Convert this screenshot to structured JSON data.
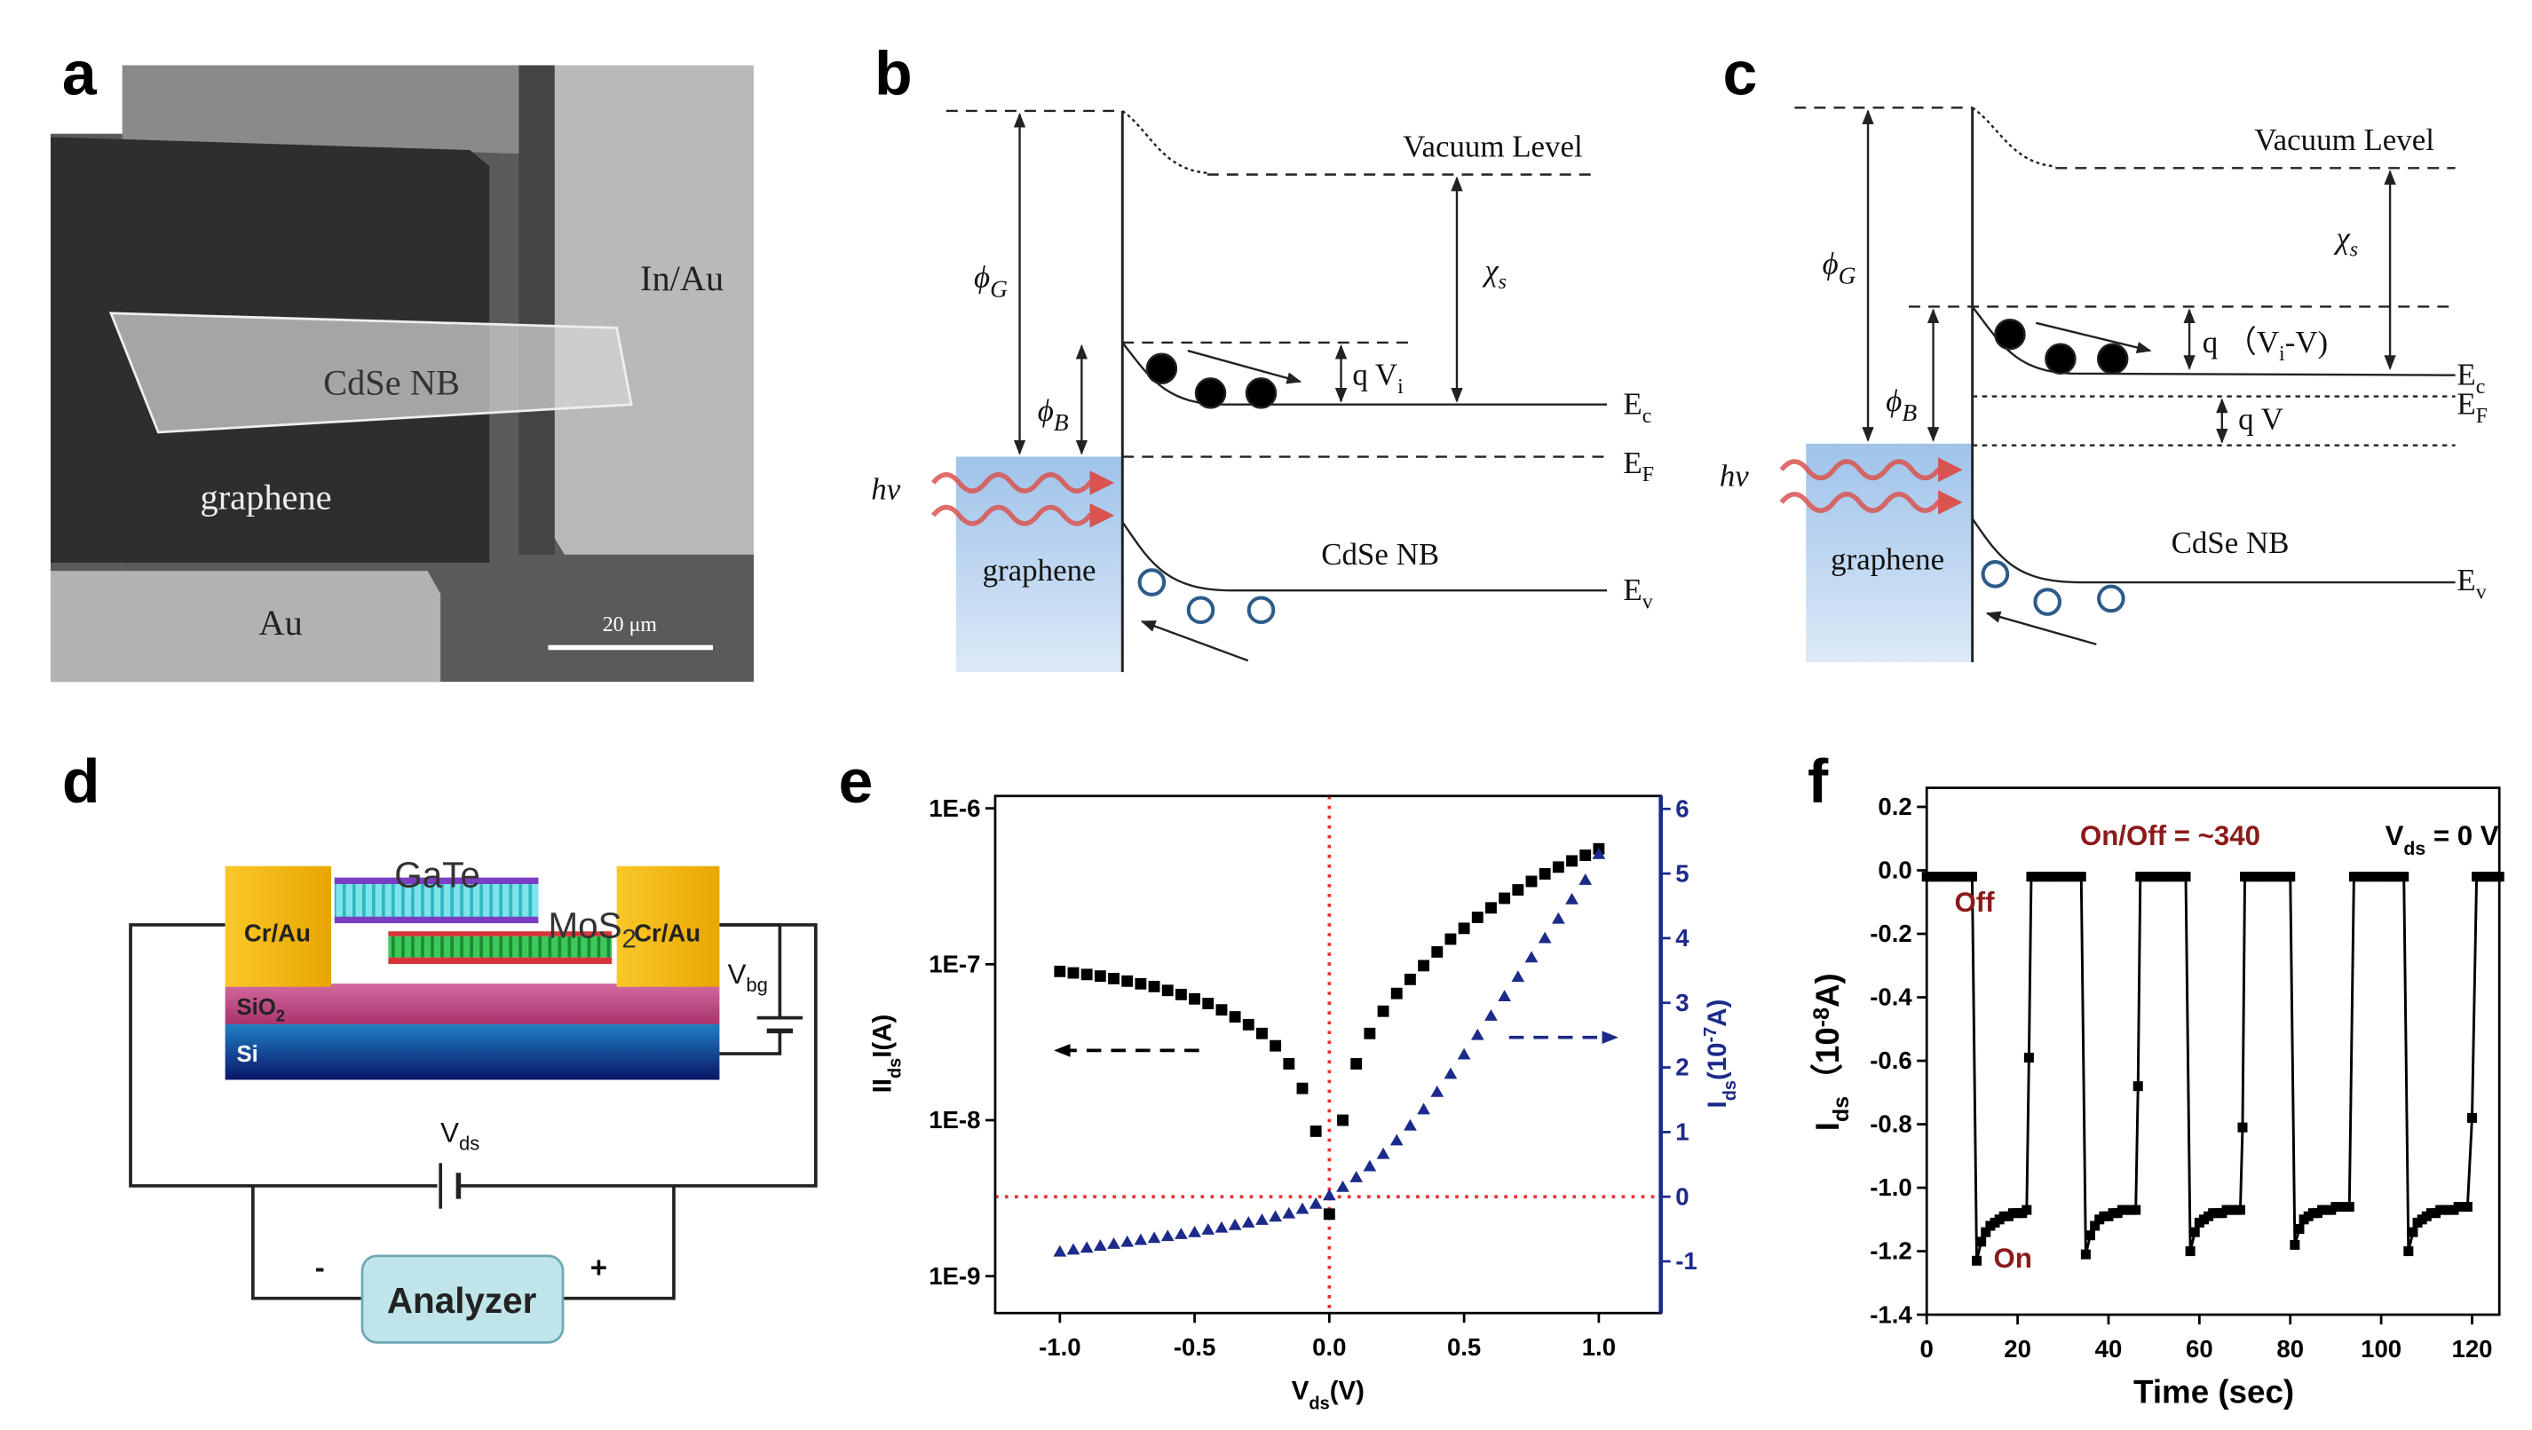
{
  "panel_labels": [
    "a",
    "b",
    "c",
    "d",
    "e",
    "f"
  ],
  "panel_a": {
    "labels": [
      "In/Au",
      "CdSe NB",
      "graphene",
      "Au"
    ],
    "scale_bar": "20 μm"
  },
  "panel_b": {
    "vacuum_level": "Vacuum Level",
    "chi": [
      "χ",
      "s"
    ],
    "phi_g": [
      "ϕ",
      "G"
    ],
    "phi_b": [
      "ϕ",
      "B"
    ],
    "qv": [
      "q V",
      "i"
    ],
    "ec": [
      "E",
      "c"
    ],
    "ef": [
      "E",
      "F"
    ],
    "ev": [
      "E",
      "v"
    ],
    "material": "CdSe NB",
    "graphene": "graphene",
    "photon": "hν"
  },
  "panel_c": {
    "vacuum_level": "Vacuum Level",
    "chi": [
      "χ",
      "s"
    ],
    "phi_g": [
      "ϕ",
      "G"
    ],
    "phi_b": [
      "ϕ",
      "B"
    ],
    "qvi": [
      "q （V",
      "i",
      "-V)"
    ],
    "qv": "q V",
    "ec": [
      "E",
      "c"
    ],
    "ef": [
      "E",
      "F"
    ],
    "ev": [
      "E",
      "v"
    ],
    "material": "CdSe NB",
    "graphene": "graphene",
    "photon": "hν"
  },
  "panel_d": {
    "gate": "GaTe",
    "mos": [
      "MoS",
      "2"
    ],
    "contact_left": "Cr/Au",
    "contact_right": "Cr/Au",
    "oxide": [
      "SiO",
      "2"
    ],
    "substrate": "Si",
    "vbg": [
      "V",
      "bg"
    ],
    "vds": [
      "V",
      "ds"
    ],
    "minus": "-",
    "plus": "+",
    "analyzer": "Analyzer"
  },
  "chart_data": [
    {
      "type": "scatter",
      "ylog": true,
      "xlabel": [
        "V",
        "ds",
        "(V)"
      ],
      "ylabel": [
        "II",
        "ds",
        "I(A)"
      ],
      "y2label": [
        "I",
        "ds",
        "(10",
        "-7",
        "A)"
      ],
      "x": [
        -1.0,
        -0.95,
        -0.9,
        -0.85,
        -0.8,
        -0.75,
        -0.7,
        -0.65,
        -0.6,
        -0.55,
        -0.5,
        -0.45,
        -0.4,
        -0.35,
        -0.3,
        -0.25,
        -0.2,
        -0.15,
        -0.1,
        -0.05,
        0.0,
        0.05,
        0.1,
        0.15,
        0.2,
        0.25,
        0.3,
        0.35,
        0.4,
        0.45,
        0.5,
        0.55,
        0.6,
        0.65,
        0.7,
        0.75,
        0.8,
        0.85,
        0.9,
        0.95,
        1.0
      ],
      "series": [
        {
          "color": "#000000",
          "marker": "square",
          "axis": "y",
          "values": [
            9e-08,
            8.8e-08,
            8.6e-08,
            8.4e-08,
            8.1e-08,
            7.8e-08,
            7.5e-08,
            7.2e-08,
            6.8e-08,
            6.4e-08,
            6e-08,
            5.6e-08,
            5.1e-08,
            4.6e-08,
            4.1e-08,
            3.6e-08,
            3e-08,
            2.3e-08,
            1.6e-08,
            8.5e-09,
            2.5e-09,
            1e-08,
            2.3e-08,
            3.6e-08,
            5e-08,
            6.5e-08,
            8e-08,
            9.8e-08,
            1.2e-07,
            1.45e-07,
            1.7e-07,
            2e-07,
            2.3e-07,
            2.65e-07,
            3e-07,
            3.4e-07,
            3.8e-07,
            4.2e-07,
            4.6e-07,
            5e-07,
            5.5e-07
          ]
        },
        {
          "color": "#1c2a8a",
          "marker": "triangle",
          "axis": "y2",
          "values": [
            -0.85,
            -0.82,
            -0.79,
            -0.76,
            -0.73,
            -0.7,
            -0.67,
            -0.64,
            -0.61,
            -0.58,
            -0.55,
            -0.51,
            -0.48,
            -0.44,
            -0.4,
            -0.36,
            -0.31,
            -0.26,
            -0.19,
            -0.11,
            0.02,
            0.15,
            0.3,
            0.47,
            0.66,
            0.87,
            1.1,
            1.35,
            1.62,
            1.9,
            2.2,
            2.5,
            2.8,
            3.1,
            3.4,
            3.7,
            4.0,
            4.3,
            4.6,
            4.9,
            5.3
          ]
        }
      ],
      "xlim": [
        -1.24,
        1.23
      ],
      "ylim": [
        5.8e-10,
        1.2e-06
      ],
      "y2lim": [
        -1.8,
        6.2
      ],
      "xticks": [
        {
          "value": -1,
          "label": "-1.0"
        },
        -0.5,
        {
          "value": 0,
          "label": "0.0"
        },
        0.5,
        {
          "value": 1,
          "label": "1.0"
        }
      ],
      "yticks": [
        {
          "value": 1e-09,
          "label": "1E-9"
        },
        {
          "value": 1e-08,
          "label": "1E-8"
        },
        {
          "value": 1e-07,
          "label": "1E-7"
        },
        {
          "value": 1e-06,
          "label": "1E-6"
        }
      ],
      "y2ticks": [
        -1,
        0,
        1,
        2,
        3,
        4,
        5,
        6
      ],
      "y2_color": "#1c2a8a",
      "reference_lines": [
        {
          "axis": "x",
          "value": 0,
          "color": "#e83030"
        },
        {
          "axis": "y2",
          "value": 0,
          "color": "#e83030"
        }
      ]
    },
    {
      "type": "line",
      "xlabel": "Time (sec)",
      "ylabel": [
        "I",
        "ds",
        "（10",
        "-8",
        "A)"
      ],
      "x": [
        0,
        1,
        2,
        3,
        4,
        5,
        6,
        7,
        8,
        9,
        10,
        11,
        12,
        13,
        14,
        15,
        16,
        17,
        18,
        19,
        20,
        21,
        22,
        22.5,
        23,
        24,
        25,
        26,
        27,
        28,
        29,
        30,
        31,
        32,
        33,
        34,
        35,
        36,
        37,
        38,
        39,
        40,
        41,
        42,
        43,
        44,
        45,
        46,
        46.5,
        47,
        48,
        49,
        50,
        51,
        52,
        53,
        54,
        55,
        56,
        57,
        58,
        59,
        60,
        61,
        62,
        63,
        64,
        65,
        66,
        67,
        68,
        69,
        69.5,
        70,
        71,
        72,
        73,
        74,
        75,
        76,
        77,
        78,
        79,
        80,
        81,
        82,
        83,
        84,
        85,
        86,
        87,
        88,
        89,
        90,
        91,
        92,
        93,
        94,
        95,
        96,
        97,
        98,
        99,
        100,
        101,
        102,
        103,
        104,
        105,
        106,
        107,
        108,
        109,
        110,
        111,
        112,
        113,
        114,
        115,
        116,
        117,
        118,
        119,
        120,
        121,
        122,
        123,
        124,
        125,
        126
      ],
      "series": [
        {
          "color": "#000000",
          "marker": "square",
          "values": [
            -0.02,
            -0.02,
            -0.02,
            -0.02,
            -0.02,
            -0.02,
            -0.02,
            -0.02,
            -0.02,
            -0.02,
            -0.02,
            -1.23,
            -1.17,
            -1.14,
            -1.12,
            -1.11,
            -1.1,
            -1.09,
            -1.09,
            -1.08,
            -1.08,
            -1.08,
            -1.07,
            -0.59,
            -0.02,
            -0.02,
            -0.02,
            -0.02,
            -0.02,
            -0.02,
            -0.02,
            -0.02,
            -0.02,
            -0.02,
            -0.02,
            -0.02,
            -1.21,
            -1.15,
            -1.12,
            -1.1,
            -1.09,
            -1.09,
            -1.08,
            -1.08,
            -1.07,
            -1.07,
            -1.07,
            -1.07,
            -0.68,
            -0.02,
            -0.02,
            -0.02,
            -0.02,
            -0.02,
            -0.02,
            -0.02,
            -0.02,
            -0.02,
            -0.02,
            -0.02,
            -1.2,
            -1.14,
            -1.11,
            -1.1,
            -1.09,
            -1.08,
            -1.08,
            -1.08,
            -1.07,
            -1.07,
            -1.07,
            -1.07,
            -0.81,
            -0.02,
            -0.02,
            -0.02,
            -0.02,
            -0.02,
            -0.02,
            -0.02,
            -0.02,
            -0.02,
            -0.02,
            -0.02,
            -1.18,
            -1.13,
            -1.1,
            -1.09,
            -1.08,
            -1.08,
            -1.07,
            -1.07,
            -1.07,
            -1.06,
            -1.06,
            -1.06,
            -1.06,
            -0.02,
            -0.02,
            -0.02,
            -0.02,
            -0.02,
            -0.02,
            -0.02,
            -0.02,
            -0.02,
            -0.02,
            -0.02,
            -0.02,
            -1.2,
            -1.14,
            -1.11,
            -1.1,
            -1.09,
            -1.08,
            -1.08,
            -1.07,
            -1.07,
            -1.07,
            -1.07,
            -1.06,
            -1.06,
            -1.06,
            -0.78,
            -0.02,
            -0.02,
            -0.02,
            -0.02,
            -0.02,
            -0.02
          ]
        }
      ],
      "xlim": [
        0,
        126
      ],
      "ylim": [
        -1.4,
        0.26
      ],
      "xticks": [
        0,
        20,
        40,
        60,
        80,
        100,
        120
      ],
      "yticks": [
        0.2,
        {
          "value": 0,
          "label": "0.0"
        },
        -0.2,
        -0.4,
        -0.6,
        -0.8,
        {
          "value": -1,
          "label": "-1.0"
        },
        -1.2,
        -1.4
      ],
      "annotations": [
        {
          "text": "On/Off = ~340",
          "color": "#8b1a1a"
        },
        {
          "text": [
            "V",
            "ds",
            " = 0 V"
          ],
          "color": "#000000"
        },
        {
          "text": "Off",
          "color": "#8b1a1a"
        },
        {
          "text": "On",
          "color": "#8b1a1a"
        }
      ]
    }
  ]
}
